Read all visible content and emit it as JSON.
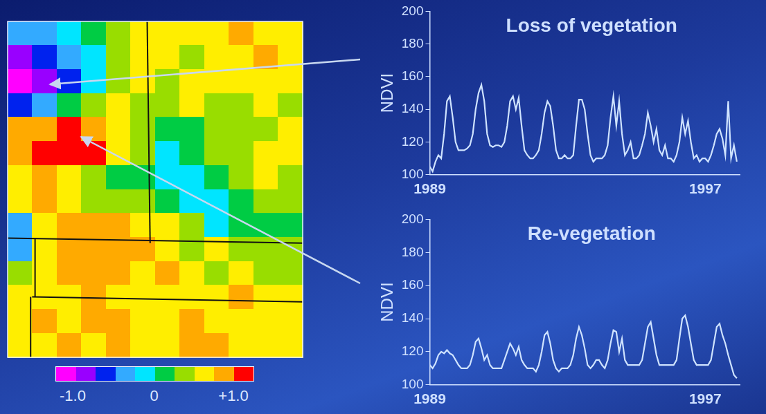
{
  "chart_data": [
    {
      "type": "heatmap",
      "tick_labels": false,
      "cells": [
        [
          -0.3,
          -0.4,
          -0.2,
          0.1,
          0.3,
          0.5,
          0.4,
          0.5,
          0.4,
          0.6,
          0.5,
          0.4
        ],
        [
          -0.7,
          -0.6,
          -0.4,
          -0.1,
          0.3,
          0.4,
          0.5,
          0.3,
          0.5,
          0.4,
          0.6,
          0.5
        ],
        [
          -0.8,
          -0.7,
          -0.5,
          -0.2,
          0.2,
          0.4,
          0.3,
          0.5,
          0.4,
          0.5,
          0.4,
          0.5
        ],
        [
          -0.5,
          -0.3,
          0.1,
          0.3,
          0.4,
          0.3,
          0.2,
          0.4,
          0.3,
          0.2,
          0.4,
          0.3
        ],
        [
          0.6,
          0.7,
          0.8,
          0.6,
          0.5,
          0.3,
          0.1,
          0.0,
          0.2,
          0.3,
          0.2,
          0.4
        ],
        [
          0.7,
          0.8,
          0.9,
          0.8,
          0.5,
          0.2,
          -0.1,
          0.1,
          0.3,
          0.2,
          0.4,
          0.5
        ],
        [
          0.5,
          0.6,
          0.5,
          0.3,
          0.1,
          0.0,
          -0.2,
          -0.1,
          0.1,
          0.3,
          0.4,
          0.3
        ],
        [
          0.5,
          0.6,
          0.4,
          0.2,
          0.3,
          0.2,
          0.1,
          -0.2,
          -0.1,
          0.0,
          0.3,
          0.2
        ],
        [
          -0.3,
          0.5,
          0.6,
          0.6,
          0.7,
          0.5,
          0.4,
          0.2,
          -0.1,
          0.1,
          0.0,
          0.1
        ],
        [
          -0.4,
          0.4,
          0.6,
          0.6,
          0.7,
          0.7,
          0.5,
          0.3,
          0.4,
          0.3,
          0.3,
          0.3
        ],
        [
          0.3,
          0.5,
          0.6,
          0.6,
          0.6,
          0.5,
          0.6,
          0.4,
          0.3,
          0.4,
          0.3,
          0.2
        ],
        [
          0.5,
          0.5,
          0.4,
          0.6,
          0.4,
          0.5,
          0.5,
          0.4,
          0.5,
          0.6,
          0.4,
          0.5
        ],
        [
          0.4,
          0.6,
          0.5,
          0.7,
          0.6,
          0.5,
          0.4,
          0.6,
          0.5,
          0.4,
          0.5,
          0.4
        ],
        [
          0.5,
          0.4,
          0.6,
          0.5,
          0.7,
          0.4,
          0.5,
          0.6,
          0.7,
          0.5,
          0.4,
          0.5
        ]
      ],
      "colorbar": {
        "range": [
          -1,
          1
        ],
        "ticks": [
          {
            "value": -1,
            "label": "-1.0"
          },
          0,
          {
            "value": 1,
            "label": "+1.0"
          }
        ],
        "colors": [
          "#ff00ff",
          "#9900ff",
          "#0022ee",
          "#33aaff",
          "#00e5ff",
          "#00cc44",
          "#99dd00",
          "#ffee00",
          "#ffaa00",
          "#ff0000"
        ]
      }
    },
    {
      "type": "line",
      "title": "Loss of vegetation",
      "y_label": "NDVI",
      "color": "#cfe3ff",
      "xlim": [
        1989,
        1998
      ],
      "xticks": [
        1989,
        1997
      ],
      "ylim": [
        100,
        200
      ],
      "yticks": [
        100,
        120,
        140,
        160,
        180,
        200
      ],
      "grid": false,
      "x": [
        1989,
        1989.083,
        1989.167,
        1989.25,
        1989.333,
        1989.417,
        1989.5,
        1989.583,
        1989.667,
        1989.75,
        1989.833,
        1989.917,
        1990,
        1990.083,
        1990.167,
        1990.25,
        1990.333,
        1990.417,
        1990.5,
        1990.583,
        1990.667,
        1990.75,
        1990.833,
        1990.917,
        1991,
        1991.083,
        1991.167,
        1991.25,
        1991.333,
        1991.417,
        1991.5,
        1991.583,
        1991.667,
        1991.75,
        1991.833,
        1991.917,
        1992,
        1992.083,
        1992.167,
        1992.25,
        1992.333,
        1992.417,
        1992.5,
        1992.583,
        1992.667,
        1992.75,
        1992.833,
        1992.917,
        1993,
        1993.083,
        1993.167,
        1993.25,
        1993.333,
        1993.417,
        1993.5,
        1993.583,
        1993.667,
        1993.75,
        1993.833,
        1993.917,
        1994,
        1994.083,
        1994.167,
        1994.25,
        1994.333,
        1994.417,
        1994.5,
        1994.583,
        1994.667,
        1994.75,
        1994.833,
        1994.917,
        1995,
        1995.083,
        1995.167,
        1995.25,
        1995.333,
        1995.417,
        1995.5,
        1995.583,
        1995.667,
        1995.75,
        1995.833,
        1995.917,
        1996,
        1996.083,
        1996.167,
        1996.25,
        1996.333,
        1996.417,
        1996.5,
        1996.583,
        1996.667,
        1996.75,
        1996.833,
        1996.917,
        1997,
        1997.083,
        1997.167,
        1997.25,
        1997.333,
        1997.417,
        1997.5,
        1997.583,
        1997.667,
        1997.75,
        1997.833,
        1997.917
      ],
      "values": [
        105,
        102,
        108,
        112,
        110,
        125,
        145,
        148,
        135,
        120,
        115,
        115,
        115,
        116,
        118,
        125,
        140,
        150,
        155,
        145,
        125,
        118,
        117,
        118,
        118,
        117,
        120,
        130,
        145,
        148,
        140,
        147,
        130,
        115,
        112,
        110,
        110,
        112,
        115,
        125,
        138,
        145,
        142,
        130,
        115,
        110,
        110,
        112,
        110,
        110,
        112,
        130,
        146,
        146,
        140,
        125,
        112,
        108,
        110,
        110,
        110,
        112,
        118,
        135,
        148,
        130,
        145,
        125,
        112,
        115,
        120,
        110,
        110,
        112,
        118,
        125,
        138,
        130,
        120,
        128,
        115,
        112,
        118,
        110,
        110,
        108,
        112,
        120,
        135,
        125,
        133,
        120,
        110,
        112,
        108,
        110,
        110,
        108,
        112,
        118,
        125,
        128,
        122,
        112,
        145,
        110,
        118,
        108
      ]
    },
    {
      "type": "line",
      "title": "Re-vegetation",
      "y_label": "NDVI",
      "color": "#cfe3ff",
      "xlim": [
        1989,
        1998
      ],
      "xticks": [
        1989,
        1997
      ],
      "ylim": [
        100,
        200
      ],
      "yticks": [
        100,
        120,
        140,
        160,
        180,
        200
      ],
      "grid": false,
      "x": [
        1989,
        1989.083,
        1989.167,
        1989.25,
        1989.333,
        1989.417,
        1989.5,
        1989.583,
        1989.667,
        1989.75,
        1989.833,
        1989.917,
        1990,
        1990.083,
        1990.167,
        1990.25,
        1990.333,
        1990.417,
        1990.5,
        1990.583,
        1990.667,
        1990.75,
        1990.833,
        1990.917,
        1991,
        1991.083,
        1991.167,
        1991.25,
        1991.333,
        1991.417,
        1991.5,
        1991.583,
        1991.667,
        1991.75,
        1991.833,
        1991.917,
        1992,
        1992.083,
        1992.167,
        1992.25,
        1992.333,
        1992.417,
        1992.5,
        1992.583,
        1992.667,
        1992.75,
        1992.833,
        1992.917,
        1993,
        1993.083,
        1993.167,
        1993.25,
        1993.333,
        1993.417,
        1993.5,
        1993.583,
        1993.667,
        1993.75,
        1993.833,
        1993.917,
        1994,
        1994.083,
        1994.167,
        1994.25,
        1994.333,
        1994.417,
        1994.5,
        1994.583,
        1994.667,
        1994.75,
        1994.833,
        1994.917,
        1995,
        1995.083,
        1995.167,
        1995.25,
        1995.333,
        1995.417,
        1995.5,
        1995.583,
        1995.667,
        1995.75,
        1995.833,
        1995.917,
        1996,
        1996.083,
        1996.167,
        1996.25,
        1996.333,
        1996.417,
        1996.5,
        1996.583,
        1996.667,
        1996.75,
        1996.833,
        1996.917,
        1997,
        1997.083,
        1997.167,
        1997.25,
        1997.333,
        1997.417,
        1997.5,
        1997.583,
        1997.667,
        1997.75,
        1997.833,
        1997.917
      ],
      "values": [
        112,
        110,
        113,
        118,
        120,
        119,
        121,
        119,
        118,
        115,
        112,
        110,
        110,
        110,
        112,
        118,
        126,
        128,
        122,
        115,
        118,
        112,
        110,
        110,
        110,
        110,
        115,
        120,
        125,
        122,
        118,
        123,
        115,
        112,
        110,
        110,
        110,
        108,
        112,
        120,
        130,
        132,
        125,
        115,
        110,
        108,
        110,
        110,
        110,
        112,
        118,
        128,
        135,
        130,
        122,
        112,
        110,
        112,
        115,
        115,
        112,
        110,
        115,
        125,
        133,
        132,
        120,
        128,
        115,
        112,
        112,
        112,
        112,
        112,
        115,
        125,
        135,
        138,
        128,
        118,
        112,
        112,
        112,
        112,
        112,
        112,
        115,
        128,
        140,
        142,
        135,
        125,
        115,
        112,
        112,
        112,
        112,
        112,
        115,
        125,
        135,
        137,
        130,
        125,
        118,
        112,
        106,
        104
      ]
    }
  ]
}
